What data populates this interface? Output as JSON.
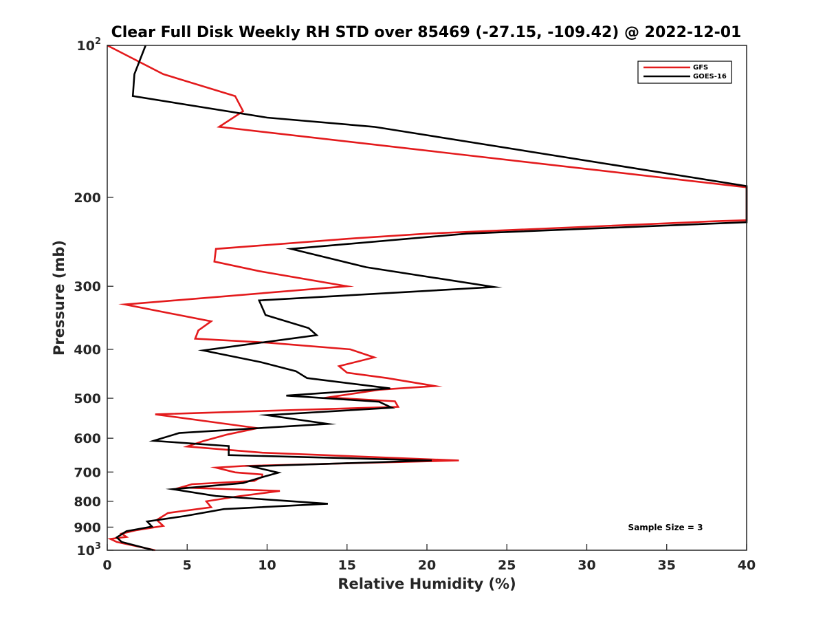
{
  "chart_data": {
    "type": "line",
    "title": "Clear Full Disk Weekly RH STD over 85469 (-27.15, -109.42) @ 2022-12-01",
    "xlabel": "Relative Humidity (%)",
    "ylabel": "Pressure (mb)",
    "xlim": [
      0,
      40
    ],
    "ylim": [
      100,
      1000
    ],
    "y_scale": "log",
    "y_reversed": true,
    "grid": false,
    "legend_position": "top-right",
    "x_ticks": [
      {
        "value": 0,
        "label": "0"
      },
      {
        "value": 5,
        "label": "5"
      },
      {
        "value": 10,
        "label": "10"
      },
      {
        "value": 15,
        "label": "15"
      },
      {
        "value": 20,
        "label": "20"
      },
      {
        "value": 25,
        "label": "25"
      },
      {
        "value": 30,
        "label": "30"
      },
      {
        "value": 35,
        "label": "35"
      },
      {
        "value": 40,
        "label": "40"
      }
    ],
    "y_ticks": [
      {
        "value": 100,
        "label": "10",
        "sup": "2"
      },
      {
        "value": 200,
        "label": "200",
        "sup": ""
      },
      {
        "value": 300,
        "label": "300",
        "sup": ""
      },
      {
        "value": 400,
        "label": "400",
        "sup": ""
      },
      {
        "value": 500,
        "label": "500",
        "sup": ""
      },
      {
        "value": 600,
        "label": "600",
        "sup": ""
      },
      {
        "value": 700,
        "label": "700",
        "sup": ""
      },
      {
        "value": 800,
        "label": "800",
        "sup": ""
      },
      {
        "value": 900,
        "label": "900",
        "sup": ""
      },
      {
        "value": 1000,
        "label": "10",
        "sup": "3"
      }
    ],
    "annotation": "Sample Size = 3",
    "series": [
      {
        "name": "GFS",
        "color": "#e31a1c",
        "points": [
          [
            0.0,
            100
          ],
          [
            3.5,
            114
          ],
          [
            8.0,
            126
          ],
          [
            8.5,
            135
          ],
          [
            7.0,
            145
          ],
          [
            40,
            191
          ],
          [
            40,
            222
          ],
          [
            38,
            223
          ],
          [
            20,
            236
          ],
          [
            15.5,
            241
          ],
          [
            6.8,
            253
          ],
          [
            6.7,
            268
          ],
          [
            9.5,
            280
          ],
          [
            15.0,
            300
          ],
          [
            1.1,
            326
          ],
          [
            6.5,
            352
          ],
          [
            5.7,
            367
          ],
          [
            5.5,
            381
          ],
          [
            10.0,
            388
          ],
          [
            15.2,
            400
          ],
          [
            16.7,
            415
          ],
          [
            14.5,
            432
          ],
          [
            15.0,
            445
          ],
          [
            17.5,
            456
          ],
          [
            20.5,
            473
          ],
          [
            17.0,
            481
          ],
          [
            13.8,
            498
          ],
          [
            18.0,
            507
          ],
          [
            18.2,
            520
          ],
          [
            3.0,
            538
          ],
          [
            9.4,
            573
          ],
          [
            7.5,
            590
          ],
          [
            6.0,
            608
          ],
          [
            5.0,
            623
          ],
          [
            9.7,
            641
          ],
          [
            22.0,
            664
          ],
          [
            8.5,
            681
          ],
          [
            6.8,
            686
          ],
          [
            8.0,
            701
          ],
          [
            9.7,
            708
          ],
          [
            9.7,
            715
          ],
          [
            9.2,
            729
          ],
          [
            5.3,
            740
          ],
          [
            4.6,
            751
          ],
          [
            10.8,
            763
          ],
          [
            8.2,
            782
          ],
          [
            6.2,
            800
          ],
          [
            6.5,
            822
          ],
          [
            3.8,
            844
          ],
          [
            3.1,
            871
          ],
          [
            3.5,
            895
          ],
          [
            1.8,
            913
          ],
          [
            0.9,
            927
          ],
          [
            1.2,
            941
          ],
          [
            0.2,
            950
          ],
          [
            0.6,
            963
          ],
          [
            3.0,
            1000
          ]
        ]
      },
      {
        "name": "GOES-16",
        "color": "#000000",
        "points": [
          [
            2.4,
            100
          ],
          [
            1.7,
            114
          ],
          [
            1.6,
            126
          ],
          [
            10.0,
            139
          ],
          [
            16.7,
            145
          ],
          [
            40,
            190
          ],
          [
            40,
            224
          ],
          [
            22.5,
            236
          ],
          [
            11.5,
            253
          ],
          [
            16.2,
            275
          ],
          [
            24.2,
            301
          ],
          [
            9.5,
            320
          ],
          [
            9.9,
            342
          ],
          [
            12.6,
            363
          ],
          [
            13.1,
            375
          ],
          [
            6.0,
            402
          ],
          [
            9.6,
            424
          ],
          [
            11.8,
            442
          ],
          [
            12.5,
            456
          ],
          [
            17.7,
            478
          ],
          [
            11.2,
            494
          ],
          [
            17.0,
            508
          ],
          [
            17.8,
            522
          ],
          [
            10.0,
            540
          ],
          [
            13.8,
            562
          ],
          [
            4.5,
            586
          ],
          [
            2.9,
            607
          ],
          [
            7.6,
            622
          ],
          [
            7.6,
            648
          ],
          [
            20.3,
            664
          ],
          [
            9.0,
            682
          ],
          [
            10.7,
            702
          ],
          [
            9.4,
            721
          ],
          [
            8.5,
            736
          ],
          [
            4.1,
            757
          ],
          [
            6.8,
            781
          ],
          [
            13.8,
            809
          ],
          [
            7.3,
            829
          ],
          [
            4.9,
            855
          ],
          [
            2.5,
            877
          ],
          [
            2.8,
            898
          ],
          [
            1.2,
            917
          ],
          [
            0.6,
            943
          ],
          [
            0.9,
            963
          ],
          [
            2.9,
            1000
          ]
        ]
      }
    ]
  }
}
